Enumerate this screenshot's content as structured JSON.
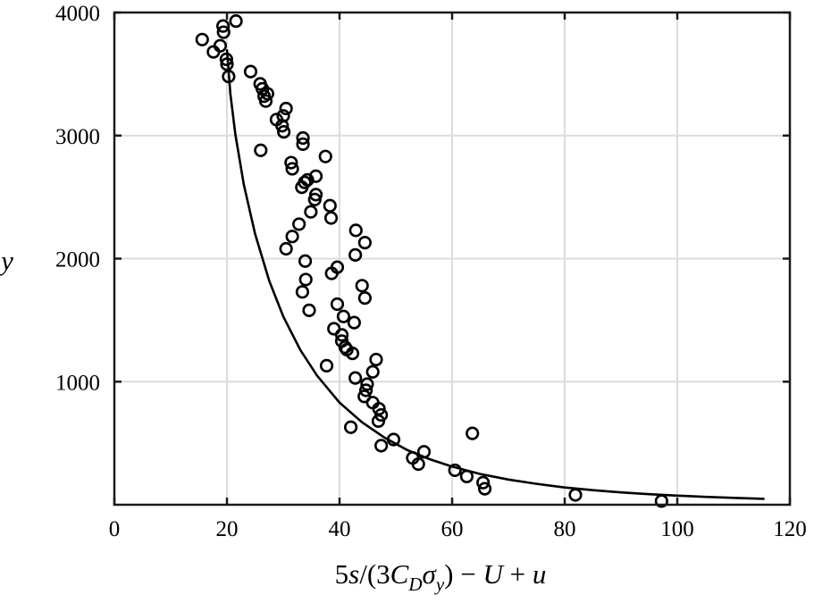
{
  "chart_data": {
    "type": "scatter",
    "title": "",
    "xlabel": "5s/(3C_Dσ_y) − U + u",
    "ylabel": "y",
    "xlim": [
      0,
      120
    ],
    "ylim": [
      0,
      4000
    ],
    "xticks": [
      0,
      20,
      40,
      60,
      80,
      100,
      120
    ],
    "yticks": [
      1000,
      2000,
      3000,
      4000
    ],
    "grid": true,
    "series": [
      {
        "kind": "points",
        "marker": "circle",
        "x": [
          15.6,
          17.6,
          18.8,
          19.3,
          19.4,
          19.9,
          20.0,
          20.3,
          21.6,
          24.2,
          25.9,
          26.3,
          26.6,
          26.9,
          27.2,
          28.8,
          29.8,
          30.1,
          30.5,
          30.0,
          26.0,
          31.4,
          31.6,
          33.3,
          33.5,
          33.5,
          33.8,
          34.3,
          35.8,
          35.8,
          35.6,
          34.9,
          37.5,
          38.3,
          38.5,
          32.8,
          31.6,
          30.5,
          33.9,
          34.0,
          33.4,
          34.6,
          39.6,
          38.6,
          40.7,
          42.9,
          44.5,
          44.0,
          42.8,
          44.5,
          39.6,
          40.4,
          42.6,
          41.0,
          39.0,
          40.4,
          41.3,
          42.3,
          37.7,
          46.5,
          45.9,
          44.9,
          44.7,
          44.4,
          42.8,
          45.9,
          47.0,
          47.4,
          46.9,
          42.0,
          49.6,
          47.4,
          53.0,
          54.0,
          55.0,
          60.5,
          62.6,
          63.6,
          65.5,
          65.8,
          81.9,
          97.2
        ],
        "y": [
          3780,
          3680,
          3730,
          3890,
          3840,
          3620,
          3580,
          3480,
          3930,
          3520,
          3420,
          3380,
          3320,
          3280,
          3340,
          3130,
          3080,
          3030,
          3220,
          3160,
          2880,
          2780,
          2730,
          2580,
          2930,
          2980,
          2620,
          2640,
          2670,
          2520,
          2480,
          2380,
          2830,
          2430,
          2330,
          2280,
          2180,
          2080,
          1980,
          1830,
          1730,
          1580,
          1930,
          1880,
          1530,
          2230,
          2130,
          1780,
          2030,
          1680,
          1630,
          1380,
          1480,
          1280,
          1430,
          1330,
          1260,
          1230,
          1130,
          1180,
          1080,
          980,
          930,
          880,
          1030,
          830,
          780,
          730,
          680,
          630,
          530,
          480,
          380,
          330,
          430,
          280,
          230,
          580,
          180,
          130,
          80,
          30
        ]
      },
      {
        "kind": "line",
        "x": [
          20.0,
          20.6,
          21.5,
          23.0,
          25.0,
          27.5,
          30.0,
          33.0,
          36.0,
          40.0,
          44.0,
          48.0,
          52.0,
          56.0,
          60.0,
          65.0,
          70.0,
          75.0,
          80.0,
          85.0,
          90.0,
          95.0,
          100.0,
          105.0,
          110.0,
          115.5
        ],
        "y": [
          3700,
          3340,
          3010,
          2600,
          2200,
          1820,
          1530,
          1260,
          1050,
          830,
          670,
          545,
          445,
          370,
          310,
          250,
          205,
          170,
          140,
          118,
          100,
          86,
          74,
          64,
          56,
          48
        ]
      }
    ]
  }
}
